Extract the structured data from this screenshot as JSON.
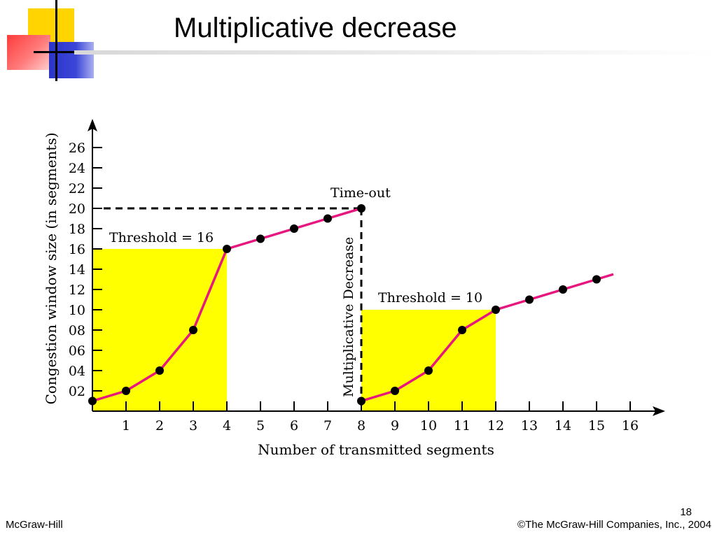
{
  "slide": {
    "title": "Multiplicative decrease",
    "footer_left": "McGraw-Hill",
    "footer_right": "©The McGraw-Hill Companies, Inc., 2004",
    "page_number": "18"
  },
  "chart_data": {
    "type": "line",
    "xlabel": "Number of transmitted segments",
    "ylabel": "Congestion window size (in segments)",
    "x_ticks": [
      "1",
      "2",
      "3",
      "4",
      "5",
      "6",
      "7",
      "8",
      "9",
      "10",
      "11",
      "12",
      "13",
      "14",
      "15",
      "16"
    ],
    "y_ticks": [
      "02",
      "04",
      "06",
      "08",
      "10",
      "12",
      "14",
      "16",
      "18",
      "20",
      "22",
      "24",
      "26"
    ],
    "series": [
      {
        "x": [
          0,
          1,
          2,
          3,
          4,
          5,
          6,
          7,
          8
        ],
        "y": [
          1,
          2,
          4,
          8,
          16,
          17,
          18,
          19,
          20
        ]
      },
      {
        "x": [
          8,
          9,
          10,
          11,
          12,
          13,
          14,
          15
        ],
        "y": [
          1,
          2,
          4,
          8,
          10,
          11,
          12,
          13
        ],
        "extends_to_x": 15.5
      }
    ],
    "thresholds": [
      {
        "label": "Threshold = 16",
        "value": 16,
        "x_range": [
          0,
          4
        ]
      },
      {
        "label": "Threshold = 10",
        "value": 10,
        "x_range": [
          8,
          12
        ]
      }
    ],
    "annotations": {
      "timeout": "Time-out",
      "decrease": "Multiplicative Decrease"
    },
    "timeout_point": {
      "x": 8,
      "y": 20
    },
    "colors": {
      "line": "#e8177f",
      "fill": "#ffff00",
      "marker": "#000000"
    }
  }
}
